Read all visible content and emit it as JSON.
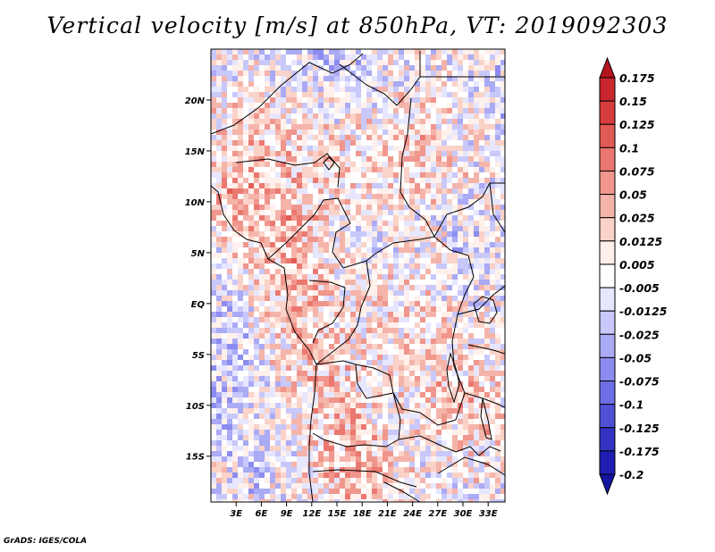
{
  "title": "Vertical velocity [m/s] at 850hPa, VT: 2019092303",
  "footer": "GrADS: IGES/COLA",
  "map": {
    "lon_range_deg": [
      0,
      35
    ],
    "lat_range_deg": [
      -19.5,
      25
    ],
    "lat_ticks": [
      "20N",
      "15N",
      "10N",
      "5N",
      "EQ",
      "5S",
      "10S",
      "15S"
    ],
    "lat_values": [
      20,
      15,
      10,
      5,
      0,
      -5,
      -10,
      -15
    ],
    "lon_ticks": [
      "3E",
      "6E",
      "9E",
      "12E",
      "15E",
      "18E",
      "21E",
      "24E",
      "27E",
      "30E",
      "33E"
    ],
    "lon_values": [
      3,
      6,
      9,
      12,
      15,
      18,
      21,
      24,
      27,
      30,
      33
    ]
  },
  "colorbar": {
    "labels": [
      "0.175",
      "0.15",
      "0.125",
      "0.1",
      "0.075",
      "0.05",
      "0.025",
      "0.0125",
      "0.005",
      "-0.005",
      "-0.0125",
      "-0.025",
      "-0.05",
      "-0.075",
      "-0.1",
      "-0.125",
      "-0.175",
      "-0.2"
    ],
    "colors": [
      "#b4141e",
      "#c8282d",
      "#d73c3c",
      "#e15a55",
      "#eb7870",
      "#f0968c",
      "#f5b4aa",
      "#fad2c8",
      "#fff0eb",
      "#ffffff",
      "#e6e6ff",
      "#c8c8fa",
      "#aaaaf5",
      "#8c8cf0",
      "#6e6ee6",
      "#5050d7",
      "#3232c3",
      "#1e1eb4",
      "#1414a0"
    ]
  }
}
